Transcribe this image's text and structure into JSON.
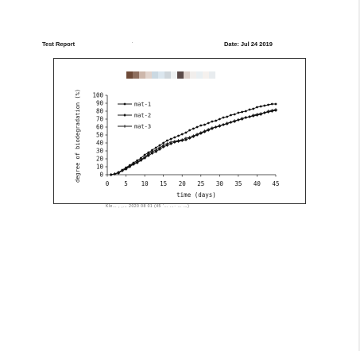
{
  "header": {
    "title": "Test Report",
    "date": "Date: Jul 24 2019"
  },
  "redaction_colors": [
    "#6e4a38",
    "#8e6f5f",
    "#cdb7ab",
    "#e1d4cd",
    "#cbd9e2",
    "#dbe6ee",
    "#cfd6db",
    "#eef1f2",
    "#5b4b49",
    "#ddd2cc",
    "#f1eeec",
    "#e9eff2",
    "#f5f1ee",
    "#e8ecef"
  ],
  "footnote_fragment": "Kle… ,   ,… 2020 08 01 (45 ʻ…    …·   … …)",
  "chart_data": {
    "type": "line",
    "title": "",
    "xlabel": "time (days)",
    "ylabel": "degree of biodegradation (%)",
    "xlim": [
      0,
      45
    ],
    "ylim": [
      0,
      100
    ],
    "x_ticks": [
      0,
      5,
      10,
      15,
      20,
      25,
      30,
      35,
      40,
      45
    ],
    "y_ticks": [
      0,
      10,
      20,
      30,
      40,
      50,
      60,
      70,
      80,
      90,
      100
    ],
    "grid": false,
    "legend_position": "top-left",
    "x": [
      1,
      2,
      3,
      4,
      5,
      6,
      7,
      8,
      9,
      10,
      11,
      12,
      13,
      14,
      15,
      16,
      17,
      18,
      19,
      20,
      21,
      22,
      23,
      24,
      25,
      26,
      27,
      28,
      29,
      30,
      31,
      32,
      33,
      34,
      35,
      36,
      37,
      38,
      39,
      40,
      41,
      42,
      43,
      44,
      45
    ],
    "series": [
      {
        "name": "mat-1",
        "marker": "circle",
        "values": [
          0,
          1,
          3,
          6,
          9,
          12,
          15,
          18,
          21,
          25,
          28,
          31,
          34,
          37,
          40,
          43,
          45,
          47,
          49,
          51,
          53,
          56,
          58,
          60,
          62,
          63,
          65,
          67,
          68,
          70,
          72,
          73,
          75,
          76,
          78,
          79,
          80,
          82,
          83,
          85,
          86,
          87,
          88,
          89,
          89
        ]
      },
      {
        "name": "mat-2",
        "marker": "diamond",
        "values": [
          0,
          1,
          2,
          5,
          7,
          10,
          13,
          15,
          18,
          21,
          24,
          27,
          29,
          32,
          35,
          37,
          39,
          41,
          42,
          43,
          44,
          46,
          48,
          50,
          52,
          54,
          56,
          58,
          60,
          61,
          63,
          64,
          66,
          67,
          69,
          70,
          72,
          73,
          74,
          75,
          76,
          78,
          79,
          80,
          81
        ]
      },
      {
        "name": "mat-3",
        "marker": "plus",
        "values": [
          0,
          1,
          3,
          5,
          8,
          11,
          14,
          16,
          19,
          22,
          26,
          29,
          31,
          34,
          37,
          39,
          41,
          42,
          43,
          44,
          46,
          47,
          49,
          51,
          53,
          55,
          57,
          59,
          60,
          62,
          63,
          65,
          66,
          68,
          69,
          71,
          72,
          73,
          75,
          76,
          77,
          78,
          80,
          81,
          82
        ]
      }
    ]
  }
}
